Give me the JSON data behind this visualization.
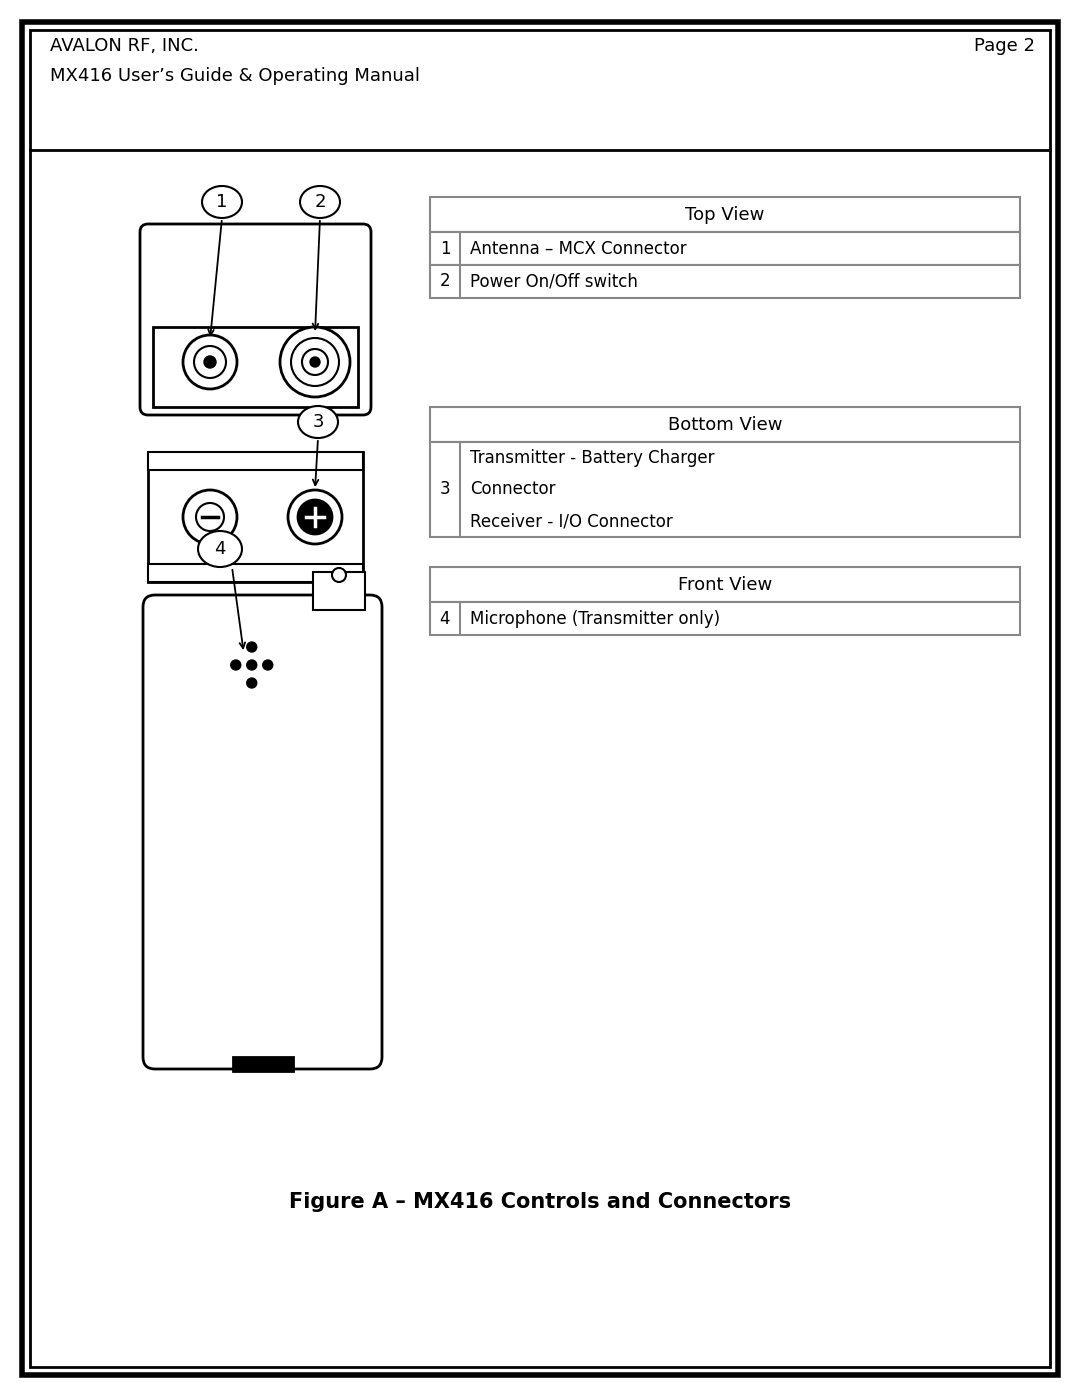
{
  "page_title_left1": "AVALON RF, INC.",
  "page_title_left2": "MX416 User’s Guide & Operating Manual",
  "page_title_right": "Page 2",
  "figure_caption": "Figure A – MX416 Controls and Connectors",
  "top_view_title": "Top View",
  "top_view_rows": [
    [
      "1",
      "Antenna – MCX Connector"
    ],
    [
      "2",
      "Power On/Off switch"
    ]
  ],
  "bottom_view_title": "Bottom View",
  "bottom_view_rows_text": [
    "Transmitter - Battery Charger",
    "Connector",
    "Receiver - I/O Connector"
  ],
  "front_view_title": "Front View",
  "front_view_rows": [
    [
      "4",
      "Microphone (Transmitter only)"
    ]
  ],
  "bg_color": "#ffffff",
  "border_color": "#000000",
  "table_line_color": "#888888"
}
